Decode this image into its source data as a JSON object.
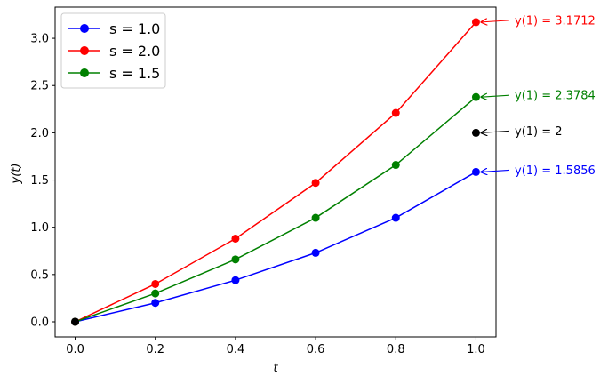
{
  "chart_data": {
    "type": "line",
    "xlabel": "t",
    "ylabel": "y(t)",
    "xlim": [
      -0.05,
      1.05
    ],
    "ylim": [
      -0.16,
      3.33
    ],
    "xticks": [
      "0.0",
      "0.2",
      "0.4",
      "0.6",
      "0.8",
      "1.0"
    ],
    "yticks": [
      "0.0",
      "0.5",
      "1.0",
      "1.5",
      "2.0",
      "2.5",
      "3.0"
    ],
    "grid": false,
    "legend_position": "top-left",
    "x": [
      0.0,
      0.2,
      0.4,
      0.6,
      0.8,
      1.0
    ],
    "series": [
      {
        "name": "s = 1.0",
        "color": "#0000ff",
        "values": [
          0.0,
          0.2,
          0.44,
          0.73,
          1.1,
          1.5856
        ]
      },
      {
        "name": "s = 2.0",
        "color": "#ff0000",
        "values": [
          0.0,
          0.4,
          0.88,
          1.47,
          2.21,
          3.1712
        ]
      },
      {
        "name": "s = 1.5",
        "color": "#008000",
        "values": [
          0.0,
          0.3,
          0.66,
          1.1,
          1.66,
          2.3784
        ]
      }
    ],
    "extra_points": [
      {
        "x": 0.0,
        "y": 0.0,
        "color": "#000000"
      },
      {
        "x": 1.0,
        "y": 2.0,
        "color": "#000000"
      }
    ],
    "annotations": [
      {
        "text": "y(1) = 3.1712",
        "x": 1.0,
        "y": 3.1712,
        "color": "#ff0000"
      },
      {
        "text": "y(1) = 2.3784",
        "x": 1.0,
        "y": 2.3784,
        "color": "#008000"
      },
      {
        "text": "y(1) = 2",
        "x": 1.0,
        "y": 2.0,
        "color": "#000000"
      },
      {
        "text": "y(1) = 1.5856",
        "x": 1.0,
        "y": 1.5856,
        "color": "#0000ff"
      }
    ]
  }
}
